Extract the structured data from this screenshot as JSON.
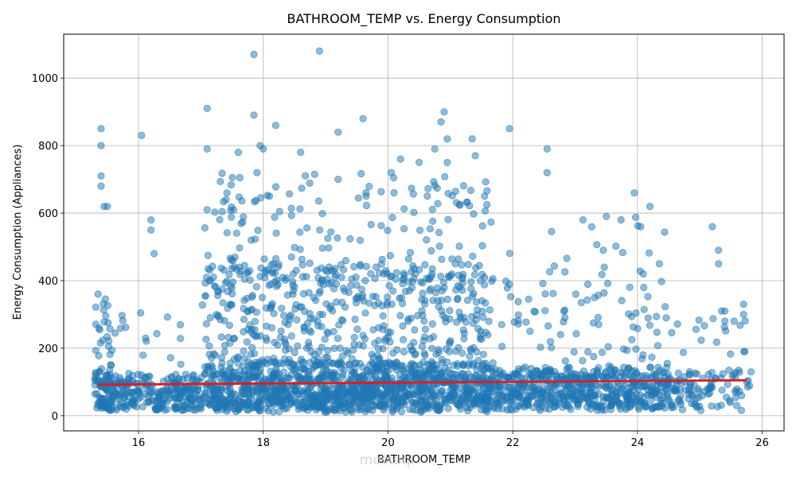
{
  "chart_data": {
    "type": "scatter",
    "title": "BATHROOM_TEMP vs. Energy Consumption",
    "xlabel": "BATHROOM_TEMP",
    "ylabel": "Energy Consumption (Appliances)",
    "xlim": [
      14.8,
      26.35
    ],
    "ylim": [
      -45,
      1130
    ],
    "xticks": [
      16,
      18,
      20,
      22,
      24,
      26
    ],
    "yticks": [
      0,
      200,
      400,
      600,
      800,
      1000
    ],
    "grid": true,
    "point_color": "#1f77b4",
    "point_alpha": 0.5,
    "trend_color": "#e31a1c",
    "series": [
      {
        "name": "observations",
        "note": "dense scatter; values sampled to reproduce distribution",
        "x": [
          15.35,
          15.4,
          15.4,
          15.4,
          15.4,
          15.45,
          15.5,
          16.05,
          16.2,
          16.2,
          16.25,
          17.1,
          17.1,
          17.1,
          17.6,
          17.85,
          17.85,
          17.9,
          17.95,
          18.0,
          18.2,
          18.6,
          18.9,
          19.2,
          19.2,
          19.6,
          19.65,
          20.05,
          20.2,
          20.5,
          20.75,
          20.85,
          20.9,
          20.95,
          20.95,
          21.35,
          21.4,
          21.95,
          22.55,
          22.55,
          23.5,
          23.95,
          24.05,
          24.2,
          24.1,
          24.35,
          25.2,
          25.3,
          25.3,
          25.35,
          25.4,
          25.4,
          25.55,
          25.7,
          25.72,
          25.82
        ],
        "y": [
          360,
          850,
          800,
          710,
          680,
          620,
          620,
          830,
          580,
          550,
          480,
          910,
          790,
          610,
          780,
          1070,
          890,
          720,
          800,
          790,
          860,
          780,
          1080,
          840,
          700,
          880,
          650,
          720,
          760,
          750,
          790,
          870,
          900,
          820,
          750,
          820,
          770,
          850,
          790,
          720,
          590,
          660,
          560,
          620,
          380,
          450,
          560,
          490,
          450,
          310,
          280,
          310,
          280,
          330,
          190,
          130
        ]
      }
    ],
    "trend_line": {
      "x": [
        15.35,
        25.75
      ],
      "y": [
        92,
        105
      ]
    }
  },
  "watermark": {
    "text": "mostaql"
  }
}
